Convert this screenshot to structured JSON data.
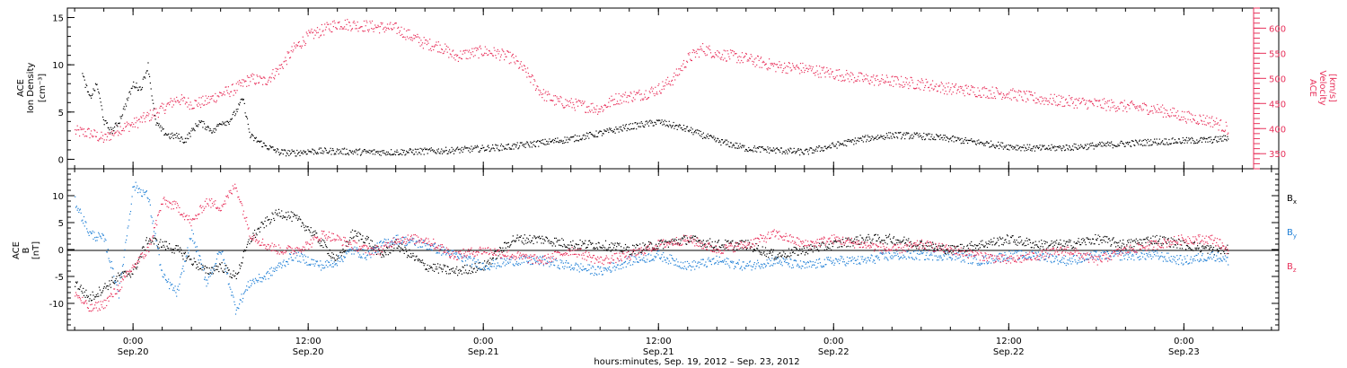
{
  "chart_data": [
    {
      "type": "scatter",
      "panel": "top",
      "ylabel": [
        "ACE",
        "Ion Density",
        "[cm⁻³]"
      ],
      "ylim": [
        -1,
        16
      ],
      "yticks": [
        0,
        5,
        10,
        15
      ],
      "right_ylabel": [
        "ACE",
        "Velocity",
        "[km/s]"
      ],
      "right_ylim": [
        320,
        640
      ],
      "right_yticks": [
        350,
        400,
        450,
        500,
        550,
        600
      ],
      "grid": false,
      "colors": {
        "density": "#000000",
        "velocity": "#e8315b"
      },
      "series": [
        {
          "name": "Ion Density",
          "axis": "left",
          "x": [
            -3.5,
            -3,
            -2.5,
            -2,
            -1.5,
            -1,
            -0.5,
            0,
            0.5,
            1,
            1.5,
            2,
            2.5,
            3,
            3.5,
            4,
            4.5,
            5,
            5.5,
            6,
            6.5,
            7,
            7.5,
            8,
            9,
            10,
            11,
            12,
            14,
            16,
            18,
            20,
            22,
            24,
            26,
            28,
            30,
            32,
            34,
            36,
            38,
            40,
            42,
            44,
            46,
            48,
            50,
            52,
            54,
            56,
            58,
            60,
            62,
            64,
            66,
            68,
            70,
            72,
            74,
            75
          ],
          "values": [
            9,
            6.5,
            8,
            4,
            3,
            4,
            6,
            8,
            7.5,
            10,
            4,
            3,
            2.5,
            2.5,
            2,
            3,
            4,
            3.5,
            3,
            4,
            4,
            5,
            6.5,
            2.5,
            1.5,
            0.8,
            0.7,
            0.9,
            0.9,
            0.8,
            0.8,
            0.9,
            1,
            1.2,
            1.4,
            1.8,
            2.2,
            2.8,
            3.5,
            4,
            3.2,
            2,
            1.2,
            1,
            0.8,
            1.5,
            2.2,
            2.6,
            2.5,
            2.2,
            1.8,
            1.4,
            1.2,
            1.3,
            1.5,
            1.7,
            1.9,
            2,
            2.1,
            2.3
          ]
        },
        {
          "name": "Velocity",
          "axis": "right",
          "x": [
            -4,
            -3,
            -2,
            -1,
            0,
            1,
            2,
            3,
            4,
            5,
            6,
            7,
            8,
            9,
            10,
            11,
            12,
            14,
            16,
            18,
            20,
            21,
            22,
            23,
            24,
            25,
            26,
            27,
            28,
            29,
            30,
            31,
            32,
            33,
            34,
            35,
            36,
            37,
            38,
            39,
            40,
            41,
            42,
            44,
            46,
            48,
            50,
            52,
            54,
            56,
            58,
            60,
            62,
            64,
            66,
            68,
            70,
            72,
            74,
            75
          ],
          "values": [
            395,
            392,
            380,
            400,
            410,
            425,
            440,
            460,
            450,
            455,
            470,
            480,
            500,
            495,
            520,
            560,
            585,
            610,
            605,
            600,
            570,
            565,
            545,
            550,
            555,
            550,
            540,
            510,
            470,
            455,
            450,
            445,
            440,
            460,
            465,
            470,
            480,
            500,
            540,
            560,
            550,
            545,
            540,
            525,
            520,
            510,
            500,
            495,
            490,
            480,
            475,
            470,
            460,
            455,
            450,
            445,
            440,
            425,
            415,
            400
          ]
        }
      ]
    },
    {
      "type": "scatter",
      "panel": "bottom",
      "ylabel": [
        "ACE",
        "B",
        "[nT]"
      ],
      "ylim": [
        -15,
        15
      ],
      "yticks": [
        -10,
        -5,
        0,
        5,
        10
      ],
      "zero_line": true,
      "grid": false,
      "legend": "right",
      "colors": {
        "Bx": "#000000",
        "By": "#1f7fd6",
        "Bz": "#e8315b"
      },
      "x": [
        -4,
        -3,
        -2,
        -1,
        0,
        1,
        2,
        3,
        4,
        5,
        6,
        7,
        8,
        9,
        10,
        11,
        12,
        13,
        14,
        15,
        16,
        17,
        18,
        20,
        22,
        24,
        26,
        28,
        30,
        32,
        34,
        36,
        38,
        40,
        42,
        44,
        46,
        48,
        50,
        52,
        54,
        56,
        58,
        60,
        62,
        64,
        66,
        68,
        70,
        72,
        74,
        75
      ],
      "series": [
        {
          "name": "Bx",
          "label": "B",
          "subscript": "x",
          "values": [
            -6,
            -9,
            -7,
            -5,
            -4,
            2,
            1,
            0,
            -2,
            -4,
            -3,
            -5,
            2,
            5,
            7,
            6,
            4,
            1,
            -2,
            3,
            2,
            -1,
            1,
            -3,
            -4,
            -3,
            2,
            2,
            1,
            1,
            0,
            1,
            2,
            1,
            1,
            -1,
            0,
            1,
            2,
            2,
            1,
            0,
            1,
            2,
            1,
            1,
            2,
            1,
            2,
            1,
            0,
            0
          ]
        },
        {
          "name": "By",
          "label": "B",
          "subscript": "y",
          "values": [
            9,
            3,
            2,
            -8,
            12,
            10,
            -5,
            -8,
            3,
            -6,
            0,
            -11,
            -6,
            -5,
            -3,
            -1,
            -2,
            -3,
            -2,
            0,
            -1,
            1,
            2,
            1,
            -1,
            -3,
            -2,
            -2,
            -3,
            -4,
            -2,
            -1,
            -3,
            -2,
            -3,
            -2,
            -3,
            -2,
            -2,
            -1,
            -1,
            -1,
            -2,
            -1,
            -1,
            -2,
            -1,
            -1,
            -1,
            -2,
            -1,
            -2
          ]
        },
        {
          "name": "Bz",
          "label": "B",
          "subscript": "z",
          "values": [
            -8,
            -11,
            -10,
            -7,
            -3,
            0,
            9,
            8,
            5,
            9,
            8,
            12,
            3,
            1,
            0,
            0,
            1,
            3,
            2,
            1,
            0,
            0,
            2,
            2,
            -1,
            0,
            -1,
            -2,
            0,
            -2,
            -1,
            1,
            2,
            0,
            1,
            3,
            1,
            2,
            1,
            0,
            1,
            0,
            -1,
            -2,
            -1,
            0,
            -2,
            0,
            1,
            2,
            2,
            0
          ]
        }
      ]
    }
  ],
  "xaxis": {
    "xlim": [
      -4.5,
      78.5
    ],
    "tick_hours": [
      0,
      12,
      24,
      36,
      48,
      60,
      72
    ],
    "ticks": [
      [
        "0:00",
        "Sep.20"
      ],
      [
        "12:00",
        "Sep.20"
      ],
      [
        "0:00",
        "Sep.21"
      ],
      [
        "12:00",
        "Sep.21"
      ],
      [
        "0:00",
        "Sep.22"
      ],
      [
        "12:00",
        "Sep.22"
      ],
      [
        "0:00",
        "Sep.23"
      ]
    ],
    "xlabel": "hours:minutes, Sep. 19, 2012 – Sep. 23, 2012"
  }
}
